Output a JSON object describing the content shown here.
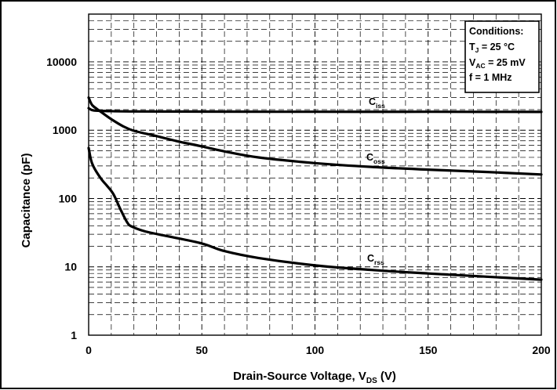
{
  "chart_data": {
    "type": "line",
    "ylabel": "Capacitance (pF)",
    "xlabel": {
      "main": "Drain-Source Voltage, V",
      "sub": "DS",
      "tail": " (V)"
    },
    "xlim": [
      0,
      200
    ],
    "ylim": [
      1,
      50000
    ],
    "yscale": "log",
    "grid": true,
    "x_ticks": [
      0,
      50,
      100,
      150,
      200
    ],
    "y_ticks": [
      1,
      10,
      100,
      1000,
      10000
    ],
    "conditions": {
      "title": "Conditions:",
      "line1": {
        "main": "T",
        "sub": "J",
        "tail": " = 25 °C"
      },
      "line2": {
        "main": "V",
        "sub": "AC",
        "tail": " = 25 mV"
      },
      "line3": "f = 1 MHz"
    },
    "series": [
      {
        "name": "C_iss",
        "label_main": "C",
        "label_sub": "iss",
        "x": [
          0,
          1,
          2,
          5,
          10,
          20,
          50,
          100,
          150,
          200
        ],
        "y": [
          2100,
          2000,
          1950,
          1920,
          1900,
          1880,
          1870,
          1860,
          1860,
          1850
        ]
      },
      {
        "name": "C_oss",
        "label_main": "C",
        "label_sub": "oss",
        "x": [
          0,
          1,
          2,
          5,
          10,
          15,
          20,
          30,
          40,
          50,
          60,
          75,
          100,
          125,
          150,
          175,
          200
        ],
        "y": [
          3000,
          2500,
          2250,
          1900,
          1450,
          1150,
          980,
          820,
          680,
          580,
          490,
          400,
          330,
          290,
          265,
          245,
          225
        ]
      },
      {
        "name": "C_rss",
        "label_main": "C",
        "label_sub": "rss",
        "x": [
          0,
          1,
          2,
          4,
          6,
          8,
          11,
          14,
          17,
          19,
          25,
          35,
          50,
          60,
          75,
          100,
          125,
          150,
          175,
          200
        ],
        "y": [
          550,
          370,
          300,
          230,
          185,
          155,
          115,
          70,
          45,
          39,
          33,
          28,
          22,
          17,
          13.5,
          10.5,
          9,
          8,
          7.2,
          6.5
        ]
      }
    ]
  }
}
